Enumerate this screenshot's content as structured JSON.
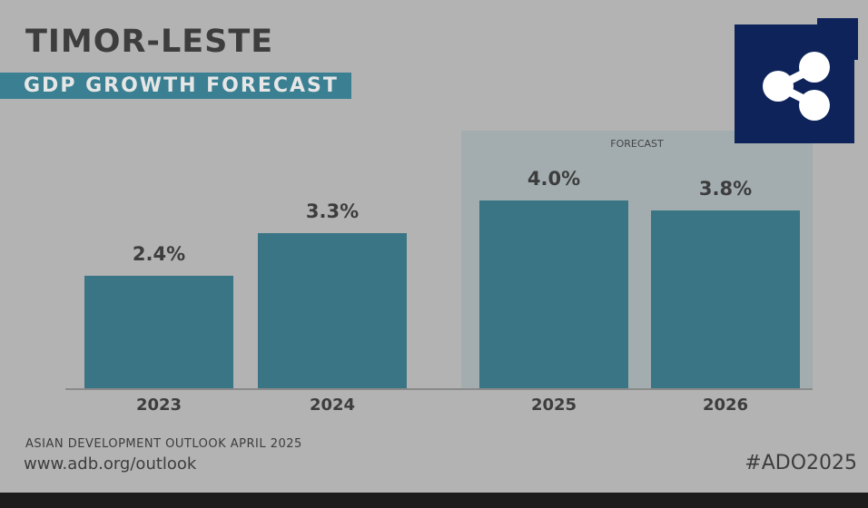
{
  "header": {
    "title": "TIMOR-LESTE",
    "subtitle": "GDP GROWTH FORECAST"
  },
  "chart_data": {
    "type": "bar",
    "title": "TIMOR-LESTE GDP GROWTH FORECAST",
    "categories": [
      "2023",
      "2024",
      "2025",
      "2026"
    ],
    "values": [
      2.4,
      3.3,
      4.0,
      3.8
    ],
    "labels": [
      "2.4%",
      "3.3%",
      "4.0%",
      "3.8%"
    ],
    "forecast_label": "FORECAST",
    "forecast_categories": [
      "2025",
      "2026"
    ],
    "ylim": [
      0,
      5.5
    ],
    "xlabel": "",
    "ylabel": "",
    "grid": false
  },
  "footer": {
    "source": "ASIAN DEVELOPMENT OUTLOOK APRIL 2025",
    "url": "www.adb.org/outlook",
    "hashtag": "#ADO2025"
  },
  "colors": {
    "bar": "#3a7585",
    "banner": "#3a7f92",
    "share": "#0d235a",
    "background": "#b3b3b3"
  },
  "share": {
    "icon": "share-icon"
  }
}
